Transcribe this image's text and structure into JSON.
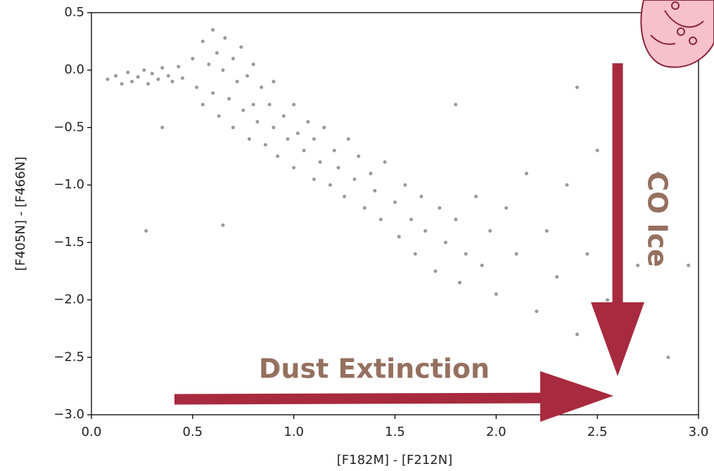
{
  "chart_data": {
    "type": "scatter",
    "x_label": "[F182M] - [F212N]",
    "y_label": "[F405N] - [F466N]",
    "color": "#000000",
    "x": [
      0.08,
      0.12,
      0.15,
      0.18,
      0.2,
      0.23,
      0.26,
      0.28,
      0.3,
      0.33,
      0.35,
      0.38,
      0.4,
      0.43,
      0.45,
      0.5,
      0.52,
      0.55,
      0.55,
      0.58,
      0.6,
      0.6,
      0.62,
      0.63,
      0.65,
      0.66,
      0.68,
      0.7,
      0.7,
      0.72,
      0.74,
      0.75,
      0.77,
      0.78,
      0.8,
      0.8,
      0.82,
      0.84,
      0.86,
      0.88,
      0.9,
      0.9,
      0.92,
      0.95,
      0.97,
      1.0,
      1.0,
      1.02,
      1.05,
      1.07,
      1.1,
      1.1,
      1.13,
      1.15,
      1.18,
      1.2,
      1.22,
      1.25,
      1.27,
      1.3,
      1.32,
      1.35,
      1.38,
      1.4,
      1.43,
      1.45,
      1.5,
      1.52,
      1.55,
      1.58,
      1.6,
      1.63,
      1.65,
      1.7,
      1.72,
      1.75,
      1.8,
      1.82,
      1.85,
      1.9,
      1.93,
      1.97,
      2.0,
      2.05,
      2.1,
      2.15,
      2.2,
      2.25,
      2.3,
      2.35,
      2.4,
      2.45,
      2.5,
      2.55,
      2.6,
      2.7,
      2.8,
      2.85,
      2.95,
      0.27,
      0.65,
      1.8,
      2.4,
      0.35
    ],
    "values": [
      -0.08,
      -0.05,
      -0.12,
      -0.02,
      -0.1,
      -0.06,
      0,
      -0.12,
      -0.03,
      -0.08,
      0.02,
      -0.05,
      -0.1,
      0.03,
      -0.07,
      0.1,
      -0.15,
      0.25,
      -0.3,
      0.05,
      0.35,
      -0.2,
      0.15,
      -0.4,
      0,
      0.28,
      -0.25,
      0.1,
      -0.5,
      -0.1,
      0.2,
      -0.35,
      -0.05,
      -0.6,
      0.05,
      -0.3,
      -0.45,
      -0.15,
      -0.65,
      -0.3,
      -0.5,
      -0.1,
      -0.75,
      -0.4,
      -0.6,
      -0.3,
      -0.85,
      -0.55,
      -0.7,
      -0.45,
      -0.95,
      -0.6,
      -0.8,
      -0.5,
      -1.0,
      -0.7,
      -0.85,
      -1.1,
      -0.6,
      -0.95,
      -0.75,
      -1.2,
      -0.9,
      -1.05,
      -1.3,
      -0.8,
      -1.15,
      -1.45,
      -1.0,
      -1.3,
      -1.6,
      -1.1,
      -1.4,
      -1.75,
      -1.2,
      -1.5,
      -1.3,
      -1.85,
      -1.6,
      -1.1,
      -1.7,
      -1.4,
      -1.95,
      -1.2,
      -1.6,
      -0.9,
      -2.1,
      -1.4,
      -1.8,
      -1.0,
      -2.3,
      -1.6,
      -0.7,
      -2.0,
      -1.3,
      -1.7,
      -0.9,
      -2.5,
      -1.7,
      -1.4,
      -1.35,
      -0.3,
      -0.15,
      -0.5
    ],
    "xlim": [
      0,
      3
    ],
    "ylim": [
      -3,
      0.5
    ],
    "xticks": [
      {
        "value": 0,
        "label": "0.0"
      },
      0.5,
      {
        "value": 1,
        "label": "1.0"
      },
      1.5,
      {
        "value": 2,
        "label": "2.0"
      },
      2.5,
      {
        "value": 3,
        "label": "3.0"
      }
    ],
    "yticks": [
      {
        "value": 0.5,
        "label": "0.5"
      },
      {
        "value": 0,
        "label": "0.0"
      },
      {
        "value": -0.5,
        "label": "−0.5"
      },
      {
        "value": -1,
        "label": "−1.0"
      },
      {
        "value": -1.5,
        "label": "−1.5"
      },
      {
        "value": -2,
        "label": "−2.0"
      },
      {
        "value": -2.5,
        "label": "−2.5"
      },
      {
        "value": -3,
        "label": "−3.0"
      }
    ],
    "annotations": [
      {
        "text": "Dust Extinction",
        "color": "#95705f"
      },
      {
        "text": "CO Ice",
        "color": "#95705f"
      }
    ]
  }
}
